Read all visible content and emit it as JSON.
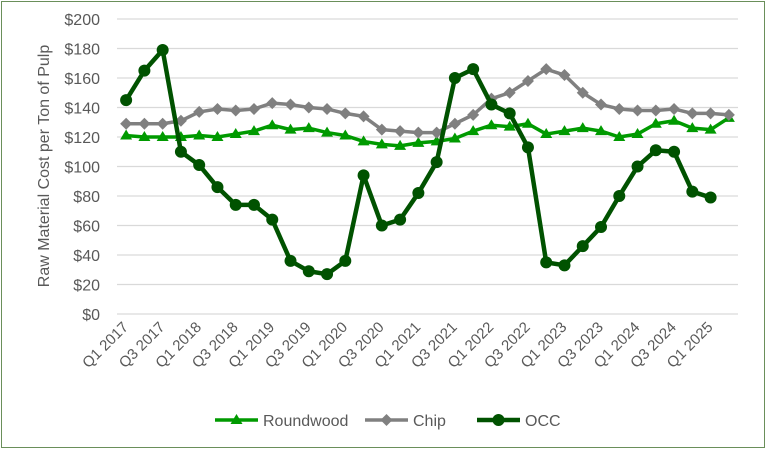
{
  "chart_data": {
    "type": "line",
    "title": "",
    "xlabel": "",
    "ylabel": "Raw Material Cost per Ton of Pulp",
    "ylim": [
      0,
      200
    ],
    "ytick_step": 20,
    "ytick_format": "$",
    "grid": true,
    "legend_position": "bottom",
    "categories": [
      "Q1 2017",
      "Q2 2017",
      "Q3 2017",
      "Q4 2017",
      "Q1 2018",
      "Q2 2018",
      "Q3 2018",
      "Q4 2018",
      "Q1 2019",
      "Q2 2019",
      "Q3 2019",
      "Q4 2019",
      "Q1 2020",
      "Q2 2020",
      "Q3 2020",
      "Q4 2020",
      "Q1 2021",
      "Q2 2021",
      "Q3 2021",
      "Q4 2021",
      "Q1 2022",
      "Q2 2022",
      "Q3 2022",
      "Q4 2022",
      "Q1 2023",
      "Q2 2023",
      "Q3 2023",
      "Q4 2023",
      "Q1 2024",
      "Q2 2024",
      "Q3 2024",
      "Q4 2024",
      "Q1 2025",
      "Q2 2025"
    ],
    "tick_labels": [
      "Q1 2017",
      "Q3 2017",
      "Q1 2018",
      "Q3 2018",
      "Q1 2019",
      "Q3 2019",
      "Q1 2020",
      "Q3 2020",
      "Q1 2021",
      "Q3 2021",
      "Q1 2022",
      "Q3 2022",
      "Q1 2023",
      "Q3 2023",
      "Q1 2024",
      "Q3 2024",
      "Q1 2025"
    ],
    "series": [
      {
        "name": "Roundwood",
        "color": "#009a00",
        "marker": "triangle",
        "values": [
          121,
          120,
          120,
          120,
          121,
          120,
          122,
          124,
          128,
          125,
          126,
          123,
          121,
          117,
          115,
          114,
          116,
          117,
          119,
          124,
          128,
          127,
          129,
          122,
          124,
          126,
          124,
          120,
          122,
          129,
          131,
          126,
          125,
          133
        ]
      },
      {
        "name": "Chip",
        "color": "#808080",
        "marker": "diamond",
        "values": [
          129,
          129,
          129,
          131,
          137,
          139,
          138,
          139,
          143,
          142,
          140,
          139,
          136,
          134,
          125,
          124,
          123,
          123,
          129,
          135,
          146,
          150,
          158,
          166,
          162,
          150,
          142,
          139,
          138,
          138,
          139,
          136,
          136,
          135
        ]
      },
      {
        "name": "OCC",
        "color": "#005200",
        "marker": "circle",
        "values": [
          145,
          165,
          179,
          110,
          101,
          86,
          74,
          74,
          64,
          36,
          29,
          27,
          36,
          94,
          60,
          64,
          82,
          103,
          160,
          166,
          142,
          136,
          113,
          35,
          33,
          46,
          59,
          80,
          100,
          111,
          110,
          83,
          79,
          null
        ]
      }
    ]
  }
}
